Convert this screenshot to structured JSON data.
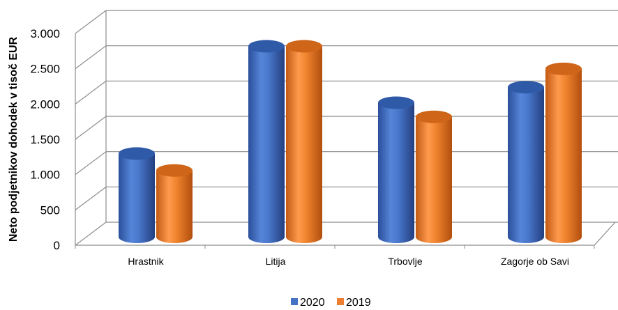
{
  "chart_data": {
    "type": "bar",
    "title": "",
    "xlabel": "",
    "ylabel": "Neto podjetnikov dohodek v tisoč EUR",
    "categories": [
      "Hrastnik",
      "Litija",
      "Trbovlje",
      "Zagorje ob Savi"
    ],
    "series": [
      {
        "name": "2020",
        "values": [
          1180,
          2700,
          1900,
          2120
        ],
        "color": "#4472C4"
      },
      {
        "name": "2019",
        "values": [
          940,
          2700,
          1700,
          2380
        ],
        "color": "#ED7D31"
      }
    ],
    "ylim": [
      0,
      3000
    ],
    "yticks": [
      0,
      500,
      1000,
      1500,
      2000,
      2500,
      3000
    ],
    "ytick_labels": [
      "0",
      "500",
      "1.000",
      "1.500",
      "2.000",
      "2.500",
      "3.000"
    ],
    "grid": true,
    "legend_position": "bottom",
    "style": "3d-cylinder"
  }
}
